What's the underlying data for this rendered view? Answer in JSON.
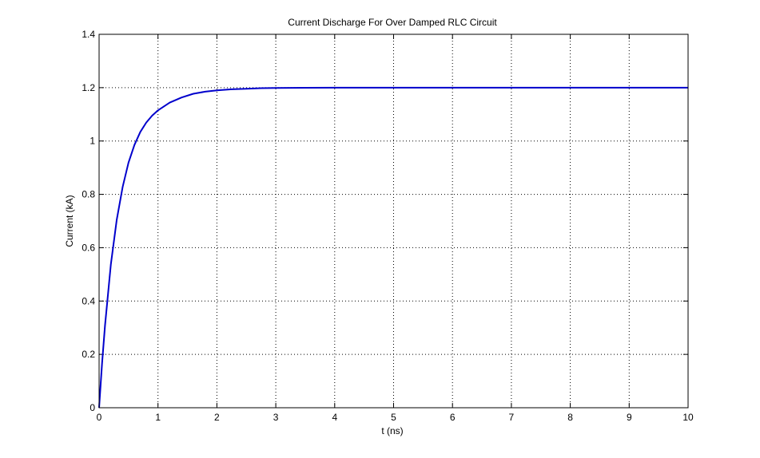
{
  "chart_data": {
    "type": "line",
    "title": "Current Discharge For Over Damped RLC Circuit",
    "xlabel": "t (ns)",
    "ylabel": "Current (kA)",
    "xlim": [
      0,
      10
    ],
    "ylim": [
      0,
      1.4
    ],
    "xticks": [
      0,
      1,
      2,
      3,
      4,
      5,
      6,
      7,
      8,
      9,
      10
    ],
    "xtick_labels": [
      "0",
      "1",
      "2",
      "3",
      "4",
      "5",
      "6",
      "7",
      "8",
      "9",
      "10"
    ],
    "yticks": [
      0,
      0.2,
      0.4,
      0.6,
      0.8,
      1,
      1.2,
      1.4
    ],
    "ytick_labels": [
      "0",
      "0.2",
      "0.4",
      "0.6",
      "0.8",
      "1",
      "1.2",
      "1.4"
    ],
    "grid": true,
    "grid_style": "dotted",
    "series": [
      {
        "color": "#0000cc",
        "x": [
          0,
          0.05,
          0.1,
          0.2,
          0.3,
          0.4,
          0.5,
          0.6,
          0.7,
          0.8,
          0.9,
          1.0,
          1.2,
          1.4,
          1.6,
          1.8,
          2.0,
          2.25,
          2.5,
          2.75,
          3.0,
          3.5,
          4.0,
          5.0,
          6.0,
          7.0,
          8.0,
          9.0,
          10.0
        ],
        "y": [
          0.0,
          0.166,
          0.308,
          0.537,
          0.705,
          0.828,
          0.919,
          0.985,
          1.034,
          1.069,
          1.095,
          1.115,
          1.144,
          1.163,
          1.177,
          1.185,
          1.19,
          1.194,
          1.196,
          1.198,
          1.199,
          1.1995,
          1.1998,
          1.2,
          1.2,
          1.2,
          1.2,
          1.2,
          1.2
        ]
      }
    ]
  }
}
